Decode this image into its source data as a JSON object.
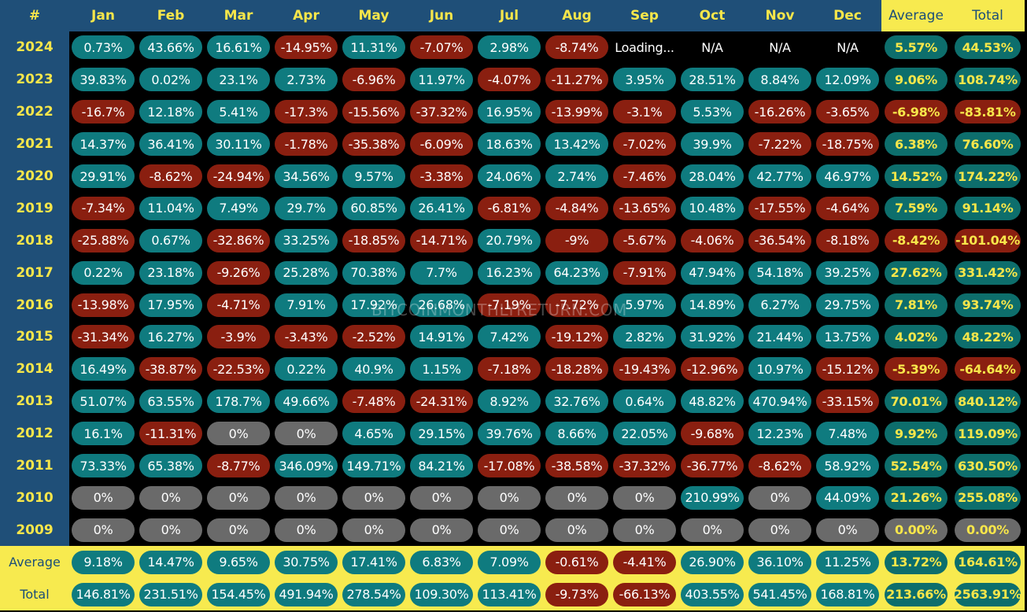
{
  "header": {
    "corner": "#",
    "months": [
      "Jan",
      "Feb",
      "Mar",
      "Apr",
      "May",
      "Jun",
      "Jul",
      "Aug",
      "Sep",
      "Oct",
      "Nov",
      "Dec"
    ],
    "average": "Average",
    "total": "Total"
  },
  "rows": [
    {
      "year": "2024",
      "values": [
        "0.73%",
        "43.66%",
        "16.61%",
        "-14.95%",
        "11.31%",
        "-7.07%",
        "2.98%",
        "-8.74%",
        "Loading...",
        "N/A",
        "N/A",
        "N/A"
      ],
      "average": "5.57%",
      "total": "44.53%"
    },
    {
      "year": "2023",
      "values": [
        "39.83%",
        "0.02%",
        "23.1%",
        "2.73%",
        "-6.96%",
        "11.97%",
        "-4.07%",
        "-11.27%",
        "3.95%",
        "28.51%",
        "8.84%",
        "12.09%"
      ],
      "average": "9.06%",
      "total": "108.74%"
    },
    {
      "year": "2022",
      "values": [
        "-16.7%",
        "12.18%",
        "5.41%",
        "-17.3%",
        "-15.56%",
        "-37.32%",
        "16.95%",
        "-13.99%",
        "-3.1%",
        "5.53%",
        "-16.26%",
        "-3.65%"
      ],
      "average": "-6.98%",
      "total": "-83.81%"
    },
    {
      "year": "2021",
      "values": [
        "14.37%",
        "36.41%",
        "30.11%",
        "-1.78%",
        "-35.38%",
        "-6.09%",
        "18.63%",
        "13.42%",
        "-7.02%",
        "39.9%",
        "-7.22%",
        "-18.75%"
      ],
      "average": "6.38%",
      "total": "76.60%"
    },
    {
      "year": "2020",
      "values": [
        "29.91%",
        "-8.62%",
        "-24.94%",
        "34.56%",
        "9.57%",
        "-3.38%",
        "24.06%",
        "2.74%",
        "-7.46%",
        "28.04%",
        "42.77%",
        "46.97%"
      ],
      "average": "14.52%",
      "total": "174.22%"
    },
    {
      "year": "2019",
      "values": [
        "-7.34%",
        "11.04%",
        "7.49%",
        "29.7%",
        "60.85%",
        "26.41%",
        "-6.81%",
        "-4.84%",
        "-13.65%",
        "10.48%",
        "-17.55%",
        "-4.64%"
      ],
      "average": "7.59%",
      "total": "91.14%"
    },
    {
      "year": "2018",
      "values": [
        "-25.88%",
        "0.67%",
        "-32.86%",
        "33.25%",
        "-18.85%",
        "-14.71%",
        "20.79%",
        "-9%",
        "-5.67%",
        "-4.06%",
        "-36.54%",
        "-8.18%"
      ],
      "average": "-8.42%",
      "total": "-101.04%"
    },
    {
      "year": "2017",
      "values": [
        "0.22%",
        "23.18%",
        "-9.26%",
        "25.28%",
        "70.38%",
        "7.7%",
        "16.23%",
        "64.23%",
        "-7.91%",
        "47.94%",
        "54.18%",
        "39.25%"
      ],
      "average": "27.62%",
      "total": "331.42%"
    },
    {
      "year": "2016",
      "values": [
        "-13.98%",
        "17.95%",
        "-4.71%",
        "7.91%",
        "17.92%",
        "26.68%",
        "-7.19%",
        "-7.72%",
        "5.97%",
        "14.89%",
        "6.27%",
        "29.75%"
      ],
      "average": "7.81%",
      "total": "93.74%"
    },
    {
      "year": "2015",
      "values": [
        "-31.34%",
        "16.27%",
        "-3.9%",
        "-3.43%",
        "-2.52%",
        "14.91%",
        "7.42%",
        "-19.12%",
        "2.82%",
        "31.92%",
        "21.44%",
        "13.75%"
      ],
      "average": "4.02%",
      "total": "48.22%"
    },
    {
      "year": "2014",
      "values": [
        "16.49%",
        "-38.87%",
        "-22.53%",
        "0.22%",
        "40.9%",
        "1.15%",
        "-7.18%",
        "-18.28%",
        "-19.43%",
        "-12.96%",
        "10.97%",
        "-15.12%"
      ],
      "average": "-5.39%",
      "total": "-64.64%"
    },
    {
      "year": "2013",
      "values": [
        "51.07%",
        "63.55%",
        "178.7%",
        "49.66%",
        "-7.48%",
        "-24.31%",
        "8.92%",
        "32.76%",
        "0.64%",
        "48.82%",
        "470.94%",
        "-33.15%"
      ],
      "average": "70.01%",
      "total": "840.12%"
    },
    {
      "year": "2012",
      "values": [
        "16.1%",
        "-11.31%",
        "0%",
        "0%",
        "4.65%",
        "29.15%",
        "39.76%",
        "8.66%",
        "22.05%",
        "-9.68%",
        "12.23%",
        "7.48%"
      ],
      "average": "9.92%",
      "total": "119.09%"
    },
    {
      "year": "2011",
      "values": [
        "73.33%",
        "65.38%",
        "-8.77%",
        "346.09%",
        "149.71%",
        "84.21%",
        "-17.08%",
        "-38.58%",
        "-37.32%",
        "-36.77%",
        "-8.62%",
        "58.92%"
      ],
      "average": "52.54%",
      "total": "630.50%"
    },
    {
      "year": "2010",
      "values": [
        "0%",
        "0%",
        "0%",
        "0%",
        "0%",
        "0%",
        "0%",
        "0%",
        "0%",
        "210.99%",
        "0%",
        "44.09%"
      ],
      "average": "21.26%",
      "total": "255.08%"
    },
    {
      "year": "2009",
      "values": [
        "0%",
        "0%",
        "0%",
        "0%",
        "0%",
        "0%",
        "0%",
        "0%",
        "0%",
        "0%",
        "0%",
        "0%"
      ],
      "average": "0.00%",
      "total": "0.00%"
    }
  ],
  "footer": {
    "average_row": {
      "label": "Average",
      "values": [
        "9.18%",
        "14.47%",
        "9.65%",
        "30.75%",
        "17.41%",
        "6.83%",
        "7.09%",
        "-0.61%",
        "-4.41%",
        "26.90%",
        "36.10%",
        "11.25%"
      ],
      "average": "13.72%",
      "total": "164.61%"
    },
    "total_row": {
      "label": "Total",
      "values": [
        "146.81%",
        "231.51%",
        "154.45%",
        "491.94%",
        "278.54%",
        "109.30%",
        "113.41%",
        "-9.73%",
        "-66.13%",
        "403.55%",
        "541.45%",
        "168.81%"
      ],
      "average": "213.66%",
      "total": "2563.91%"
    }
  },
  "watermark": "BITCOINMONTHLYRETURN.COM",
  "colors": {
    "positive": "#0f7b7f",
    "negative": "#8a1f10",
    "zero": "#6a6a6a",
    "header_bg": "#1f4f78",
    "accent_yellow": "#f7ea4f"
  }
}
